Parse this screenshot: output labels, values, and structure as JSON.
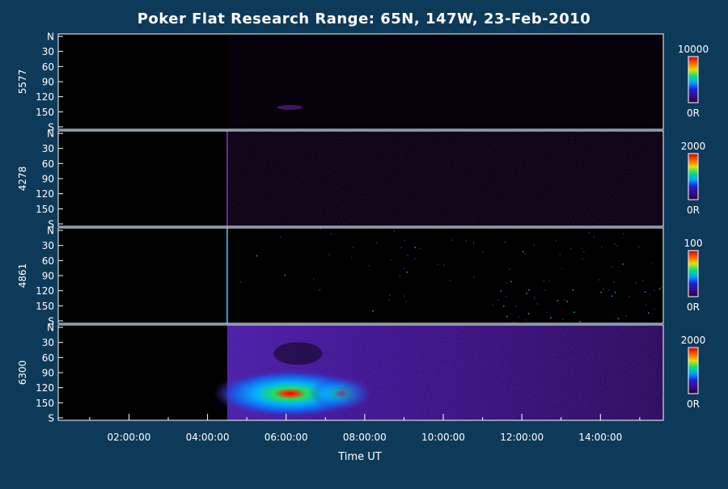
{
  "chart_data": {
    "type": "heatmap",
    "title": "Poker Flat Research Range: 65N, 147W, 23-Feb-2010",
    "xlabel": "Time UT",
    "x_tick_labels": [
      "02:00:00",
      "04:00:00",
      "06:00:00",
      "08:00:00",
      "10:00:00",
      "12:00:00",
      "14:00:00"
    ],
    "y_tick_labels": [
      "N",
      "30",
      "60",
      "90",
      "120",
      "150",
      "S"
    ],
    "colormap": [
      "#2a0033",
      "#3b0a8a",
      "#2020d0",
      "#00a0ff",
      "#00e080",
      "#e0e000",
      "#ff6000",
      "#cc0000"
    ],
    "panels": [
      {
        "ylabel": "5577",
        "colorbar_max": "10000",
        "colorbar_min": "0R",
        "onset": null
      },
      {
        "ylabel": "4278",
        "colorbar_max": "2000",
        "colorbar_min": "0R",
        "onset": "04:30:00"
      },
      {
        "ylabel": "4861",
        "colorbar_max": "100",
        "colorbar_min": "0R",
        "onset": "04:30:00"
      },
      {
        "ylabel": "6300",
        "colorbar_max": "2000",
        "colorbar_min": "0R",
        "onset": "04:30:00"
      }
    ]
  }
}
